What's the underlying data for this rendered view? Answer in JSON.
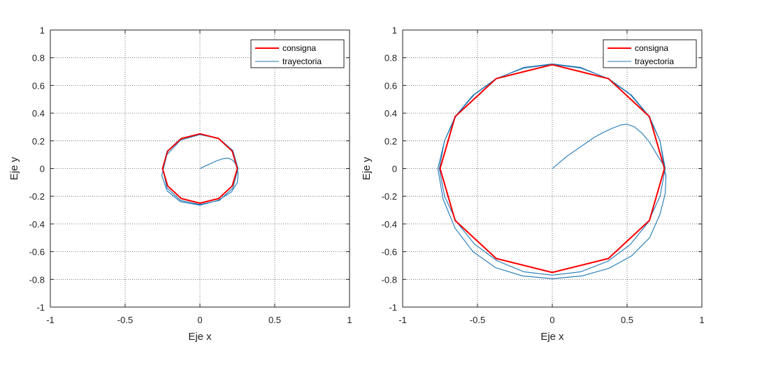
{
  "chart_data": [
    {
      "type": "line",
      "title": "",
      "xlabel": "Eje x",
      "ylabel": "Eje y",
      "xlim": [
        -1,
        1
      ],
      "ylim": [
        -1,
        1
      ],
      "xticks": [
        -1,
        -0.5,
        0,
        0.5,
        1
      ],
      "xtick_labels": [
        "-1",
        "-0.5",
        "0",
        "0.5",
        "1"
      ],
      "yticks": [
        -1,
        -0.8,
        -0.6,
        -0.4,
        -0.2,
        0,
        0.2,
        0.4,
        0.6,
        0.8,
        1
      ],
      "ytick_labels": [
        "-1",
        "-0.8",
        "-0.6",
        "-0.4",
        "-0.2",
        "0",
        "0.2",
        "0.4",
        "0.6",
        "0.8",
        "1"
      ],
      "grid": true,
      "legend_position": "top-right",
      "series": [
        {
          "name": "consigna",
          "color": "#ff0000",
          "x": [
            0.25,
            0.2165,
            0.125,
            0.0,
            -0.125,
            -0.2165,
            -0.25,
            -0.2165,
            -0.125,
            0.0,
            0.125,
            0.2165,
            0.25
          ],
          "y": [
            0.0,
            0.125,
            0.2165,
            0.25,
            0.2165,
            0.125,
            0.0,
            -0.125,
            -0.2165,
            -0.25,
            -0.2165,
            -0.125,
            0.0
          ]
        },
        {
          "name": "trayectoria",
          "color": "#1f77b4",
          "x": [
            0.0,
            0.03,
            0.07,
            0.11,
            0.15,
            0.19,
            0.22,
            0.24,
            0.255,
            0.25,
            0.21,
            0.12,
            0.0,
            -0.13,
            -0.22,
            -0.255,
            -0.22,
            -0.13,
            0.0,
            0.13,
            0.22,
            0.255,
            0.22,
            0.13,
            0.0,
            -0.13,
            -0.22,
            -0.25,
            -0.22,
            -0.13,
            0.0,
            0.13,
            0.22,
            0.25
          ],
          "y": [
            0.0,
            0.015,
            0.035,
            0.055,
            0.07,
            0.075,
            0.06,
            0.03,
            -0.03,
            -0.1,
            -0.17,
            -0.23,
            -0.265,
            -0.24,
            -0.16,
            -0.05,
            0.1,
            0.205,
            0.245,
            0.215,
            0.13,
            0.0,
            -0.14,
            -0.23,
            -0.26,
            -0.23,
            -0.14,
            0.0,
            0.125,
            0.215,
            0.25,
            0.215,
            0.125,
            0.0
          ]
        }
      ]
    },
    {
      "type": "line",
      "title": "",
      "xlabel": "Eje x",
      "ylabel": "Eje y",
      "xlim": [
        -1,
        1
      ],
      "ylim": [
        -1,
        1
      ],
      "xticks": [
        -1,
        -0.5,
        0,
        0.5,
        1
      ],
      "xtick_labels": [
        "-1",
        "-0.5",
        "0",
        "0.5",
        "1"
      ],
      "yticks": [
        -1,
        -0.8,
        -0.6,
        -0.4,
        -0.2,
        0,
        0.2,
        0.4,
        0.6,
        0.8,
        1
      ],
      "ytick_labels": [
        "-1",
        "-0.8",
        "-0.6",
        "-0.4",
        "-0.2",
        "0",
        "0.2",
        "0.4",
        "0.6",
        "0.8",
        "1"
      ],
      "grid": true,
      "legend_position": "top-right",
      "series": [
        {
          "name": "consigna",
          "color": "#ff0000",
          "x": [
            0.75,
            0.6495,
            0.375,
            0.0,
            -0.375,
            -0.6495,
            -0.75,
            -0.6495,
            -0.375,
            0.0,
            0.375,
            0.6495,
            0.75
          ],
          "y": [
            0.0,
            0.375,
            0.6495,
            0.75,
            0.6495,
            0.375,
            0.0,
            -0.375,
            -0.6495,
            -0.75,
            -0.6495,
            -0.375,
            0.0
          ]
        },
        {
          "name": "trayectoria",
          "color": "#1f77b4",
          "x": [
            0.0,
            0.05,
            0.1,
            0.16,
            0.22,
            0.28,
            0.34,
            0.4,
            0.46,
            0.5,
            0.55,
            0.6,
            0.65,
            0.7,
            0.74,
            0.76,
            0.755,
            0.72,
            0.65,
            0.53,
            0.38,
            0.2,
            0.0,
            -0.2,
            -0.38,
            -0.53,
            -0.65,
            -0.73,
            -0.765,
            -0.72,
            -0.64,
            -0.52,
            -0.37,
            -0.19,
            0.0,
            0.19,
            0.37,
            0.52,
            0.64,
            0.72,
            0.755,
            0.72,
            0.64,
            0.52,
            0.37,
            0.19,
            0.0,
            -0.19,
            -0.37,
            -0.52,
            -0.64,
            -0.72,
            -0.755,
            -0.72,
            -0.65,
            -0.53,
            -0.375,
            -0.19,
            0.0,
            0.19,
            0.375,
            0.53,
            0.65,
            0.72,
            0.75
          ],
          "y": [
            0.0,
            0.045,
            0.09,
            0.135,
            0.18,
            0.225,
            0.26,
            0.29,
            0.315,
            0.32,
            0.3,
            0.255,
            0.19,
            0.1,
            0.03,
            -0.05,
            -0.18,
            -0.33,
            -0.5,
            -0.63,
            -0.72,
            -0.775,
            -0.795,
            -0.775,
            -0.715,
            -0.6,
            -0.43,
            -0.22,
            0.0,
            0.2,
            0.385,
            0.535,
            0.65,
            0.73,
            0.755,
            0.73,
            0.65,
            0.535,
            0.385,
            0.2,
            0.0,
            -0.2,
            -0.39,
            -0.55,
            -0.67,
            -0.745,
            -0.77,
            -0.745,
            -0.665,
            -0.545,
            -0.385,
            -0.2,
            0.0,
            0.2,
            0.375,
            0.53,
            0.65,
            0.725,
            0.752,
            0.725,
            0.65,
            0.53,
            0.375,
            0.2,
            0.0
          ]
        }
      ]
    }
  ]
}
